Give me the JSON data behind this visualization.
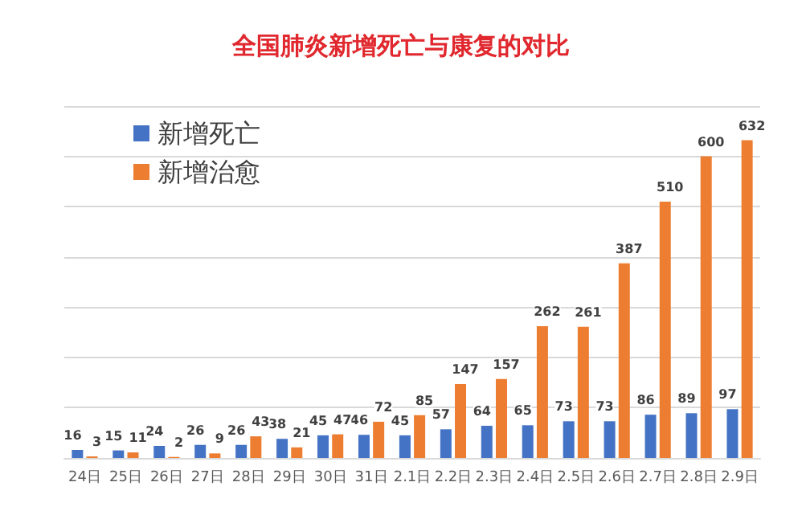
{
  "chart_data": {
    "type": "bar",
    "title": "全国肺炎新增死亡与康复的对比",
    "categories": [
      "24日",
      "25日",
      "26日",
      "27日",
      "28日",
      "29日",
      "30日",
      "31日",
      "2.1日",
      "2.2日",
      "2.3日",
      "2.4日",
      "2.5日",
      "2.6日",
      "2.7日",
      "2.8日",
      "2.9日"
    ],
    "series": [
      {
        "name": "新增死亡",
        "color": "#4472c4",
        "values": [
          16,
          15,
          24,
          26,
          26,
          38,
          45,
          46,
          45,
          57,
          64,
          65,
          73,
          73,
          86,
          89,
          97
        ]
      },
      {
        "name": "新增治愈",
        "color": "#ed7d31",
        "values": [
          3,
          11,
          2,
          9,
          43,
          21,
          47,
          72,
          85,
          147,
          157,
          262,
          261,
          387,
          510,
          600,
          632
        ]
      }
    ],
    "ylim": [
      0,
      700
    ],
    "yticks": [
      {
        "value": 0,
        "label": null
      },
      {
        "value": 100,
        "label": null
      },
      {
        "value": 200,
        "label": null
      },
      {
        "value": 300,
        "label": null
      },
      {
        "value": 400,
        "label": null
      },
      {
        "value": 500,
        "label": null
      },
      {
        "value": 600,
        "label": null
      },
      {
        "value": 700,
        "label": null
      }
    ],
    "tick_labels": "x",
    "grid": "y",
    "legend": "top left",
    "data_labels": true
  }
}
